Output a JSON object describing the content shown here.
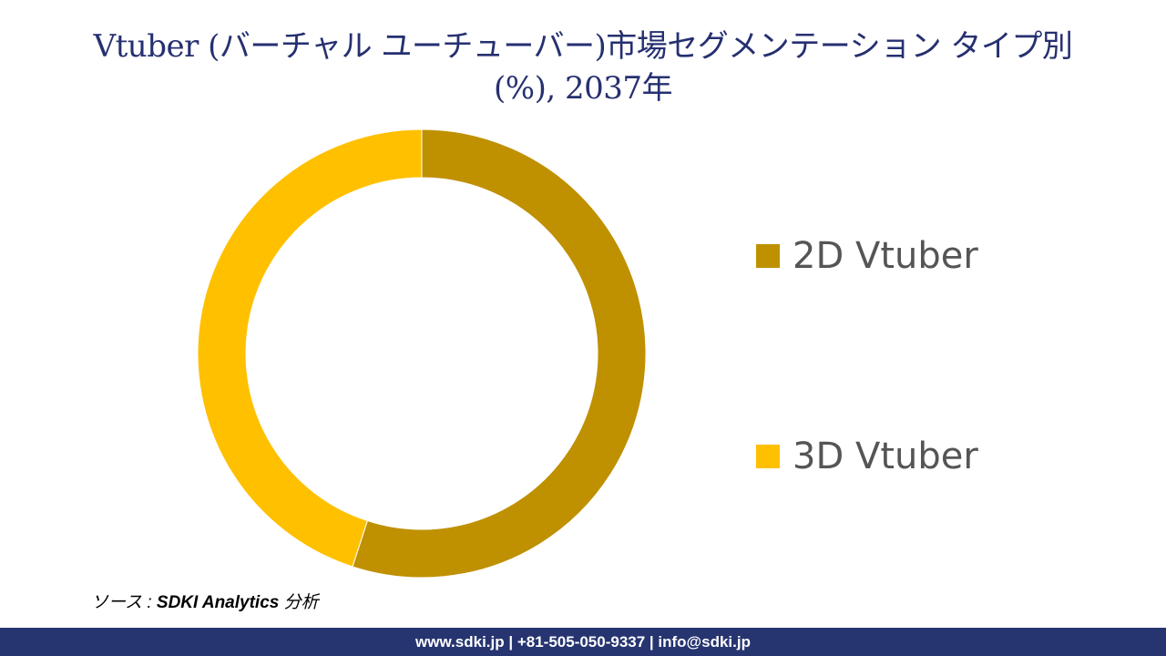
{
  "title": {
    "line1": "Vtuber (バーチャル ユーチューバー)市場セグメンテーション タイプ別",
    "line2": "(%), 2037年"
  },
  "chart_data": {
    "type": "pie",
    "subtype": "donut",
    "title": "Vtuber (バーチャル ユーチューバー)市場セグメンテーション タイプ別 (%), 2037年",
    "categories": [
      "2D Vtuber",
      "3D Vtuber"
    ],
    "values": [
      55,
      45
    ],
    "colors": [
      "#BF9000",
      "#FFC000"
    ],
    "legend_position": "right",
    "data_labels": false
  },
  "legend": {
    "items": [
      {
        "label": "2D Vtuber",
        "color": "#BF9000"
      },
      {
        "label": "3D Vtuber",
        "color": "#FFC000"
      }
    ]
  },
  "source": {
    "prefix": "ソース : ",
    "name": "SDKI Analytics",
    "suffix": " 分析"
  },
  "footer": {
    "text": "www.sdki.jp | +81-505-050-9337 | info@sdki.jp"
  }
}
